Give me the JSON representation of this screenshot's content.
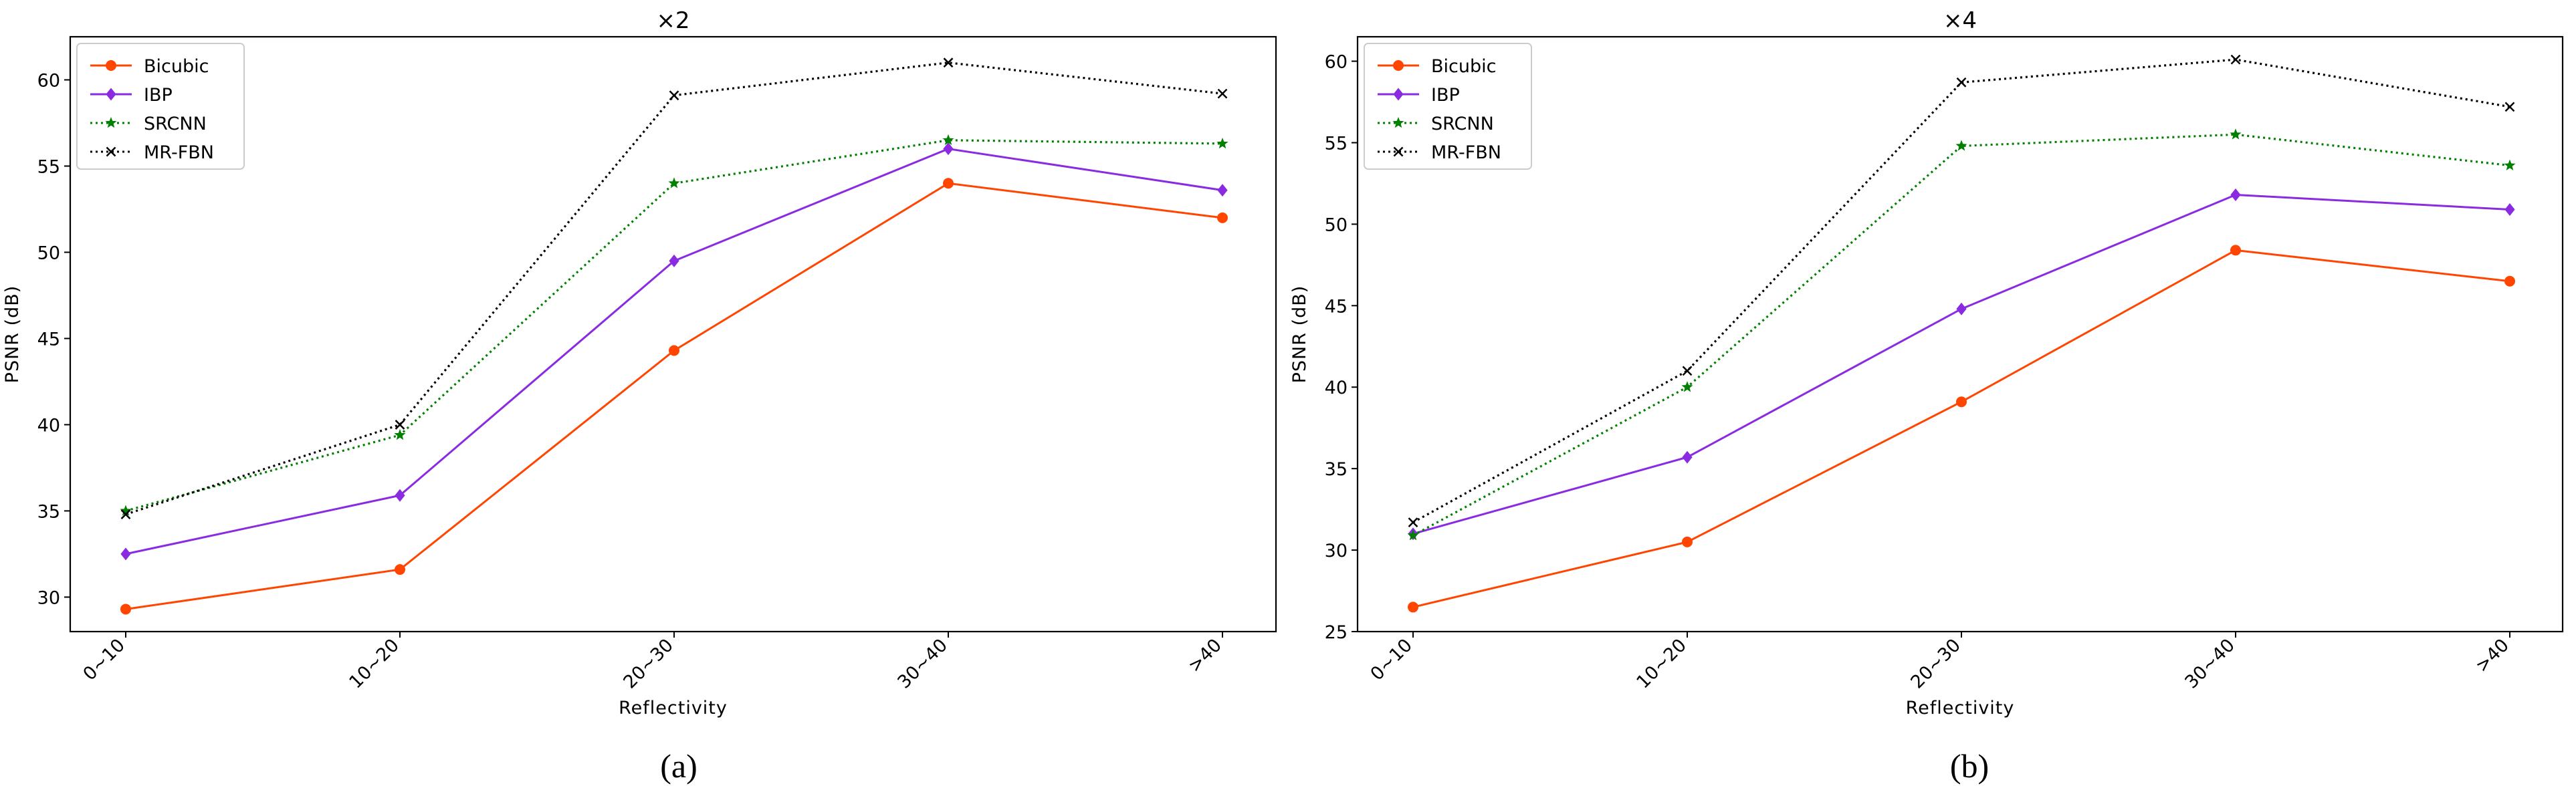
{
  "figure": {
    "captions": [
      "(a)",
      "(b)"
    ]
  },
  "chart_data": [
    {
      "type": "line",
      "title": "×2",
      "xlabel": "Reflectivity",
      "ylabel": "PSNR (dB)",
      "categories": [
        "0~10",
        "10~20",
        "20~30",
        "30~40",
        ">40"
      ],
      "ylim": [
        28,
        62.5
      ],
      "yticks": [
        30,
        35,
        40,
        45,
        50,
        55,
        60
      ],
      "legend_position": "top-left",
      "series": [
        {
          "name": "Bicubic",
          "values": [
            29.3,
            31.6,
            44.3,
            54.0,
            52.0
          ],
          "color": "#ff4500",
          "linestyle": "solid",
          "marker": "circle"
        },
        {
          "name": "IBP",
          "values": [
            32.5,
            35.9,
            49.5,
            56.0,
            53.6
          ],
          "color": "#8a2be2",
          "linestyle": "solid",
          "marker": "diamond"
        },
        {
          "name": "SRCNN",
          "values": [
            35.0,
            39.4,
            54.0,
            56.5,
            56.3
          ],
          "color": "#008000",
          "linestyle": "dotted",
          "marker": "star"
        },
        {
          "name": "MR-FBN",
          "values": [
            34.8,
            40.0,
            59.1,
            61.0,
            59.2
          ],
          "color": "#000000",
          "linestyle": "dotted",
          "marker": "x"
        }
      ]
    },
    {
      "type": "line",
      "title": "×4",
      "xlabel": "Reflectivity",
      "ylabel": "PSNR (dB)",
      "categories": [
        "0~10",
        "10~20",
        "20~30",
        "30~40",
        ">40"
      ],
      "ylim": [
        25,
        61.5
      ],
      "yticks": [
        25,
        30,
        35,
        40,
        45,
        50,
        55,
        60
      ],
      "legend_position": "top-left",
      "series": [
        {
          "name": "Bicubic",
          "values": [
            26.5,
            30.5,
            39.1,
            48.4,
            46.5
          ],
          "color": "#ff4500",
          "linestyle": "solid",
          "marker": "circle"
        },
        {
          "name": "IBP",
          "values": [
            31.0,
            35.7,
            44.8,
            51.8,
            50.9
          ],
          "color": "#8a2be2",
          "linestyle": "solid",
          "marker": "diamond"
        },
        {
          "name": "SRCNN",
          "values": [
            30.9,
            40.0,
            54.8,
            55.5,
            53.6
          ],
          "color": "#008000",
          "linestyle": "dotted",
          "marker": "star"
        },
        {
          "name": "MR-FBN",
          "values": [
            31.7,
            41.0,
            58.7,
            60.1,
            57.2
          ],
          "color": "#000000",
          "linestyle": "dotted",
          "marker": "x"
        }
      ]
    }
  ]
}
